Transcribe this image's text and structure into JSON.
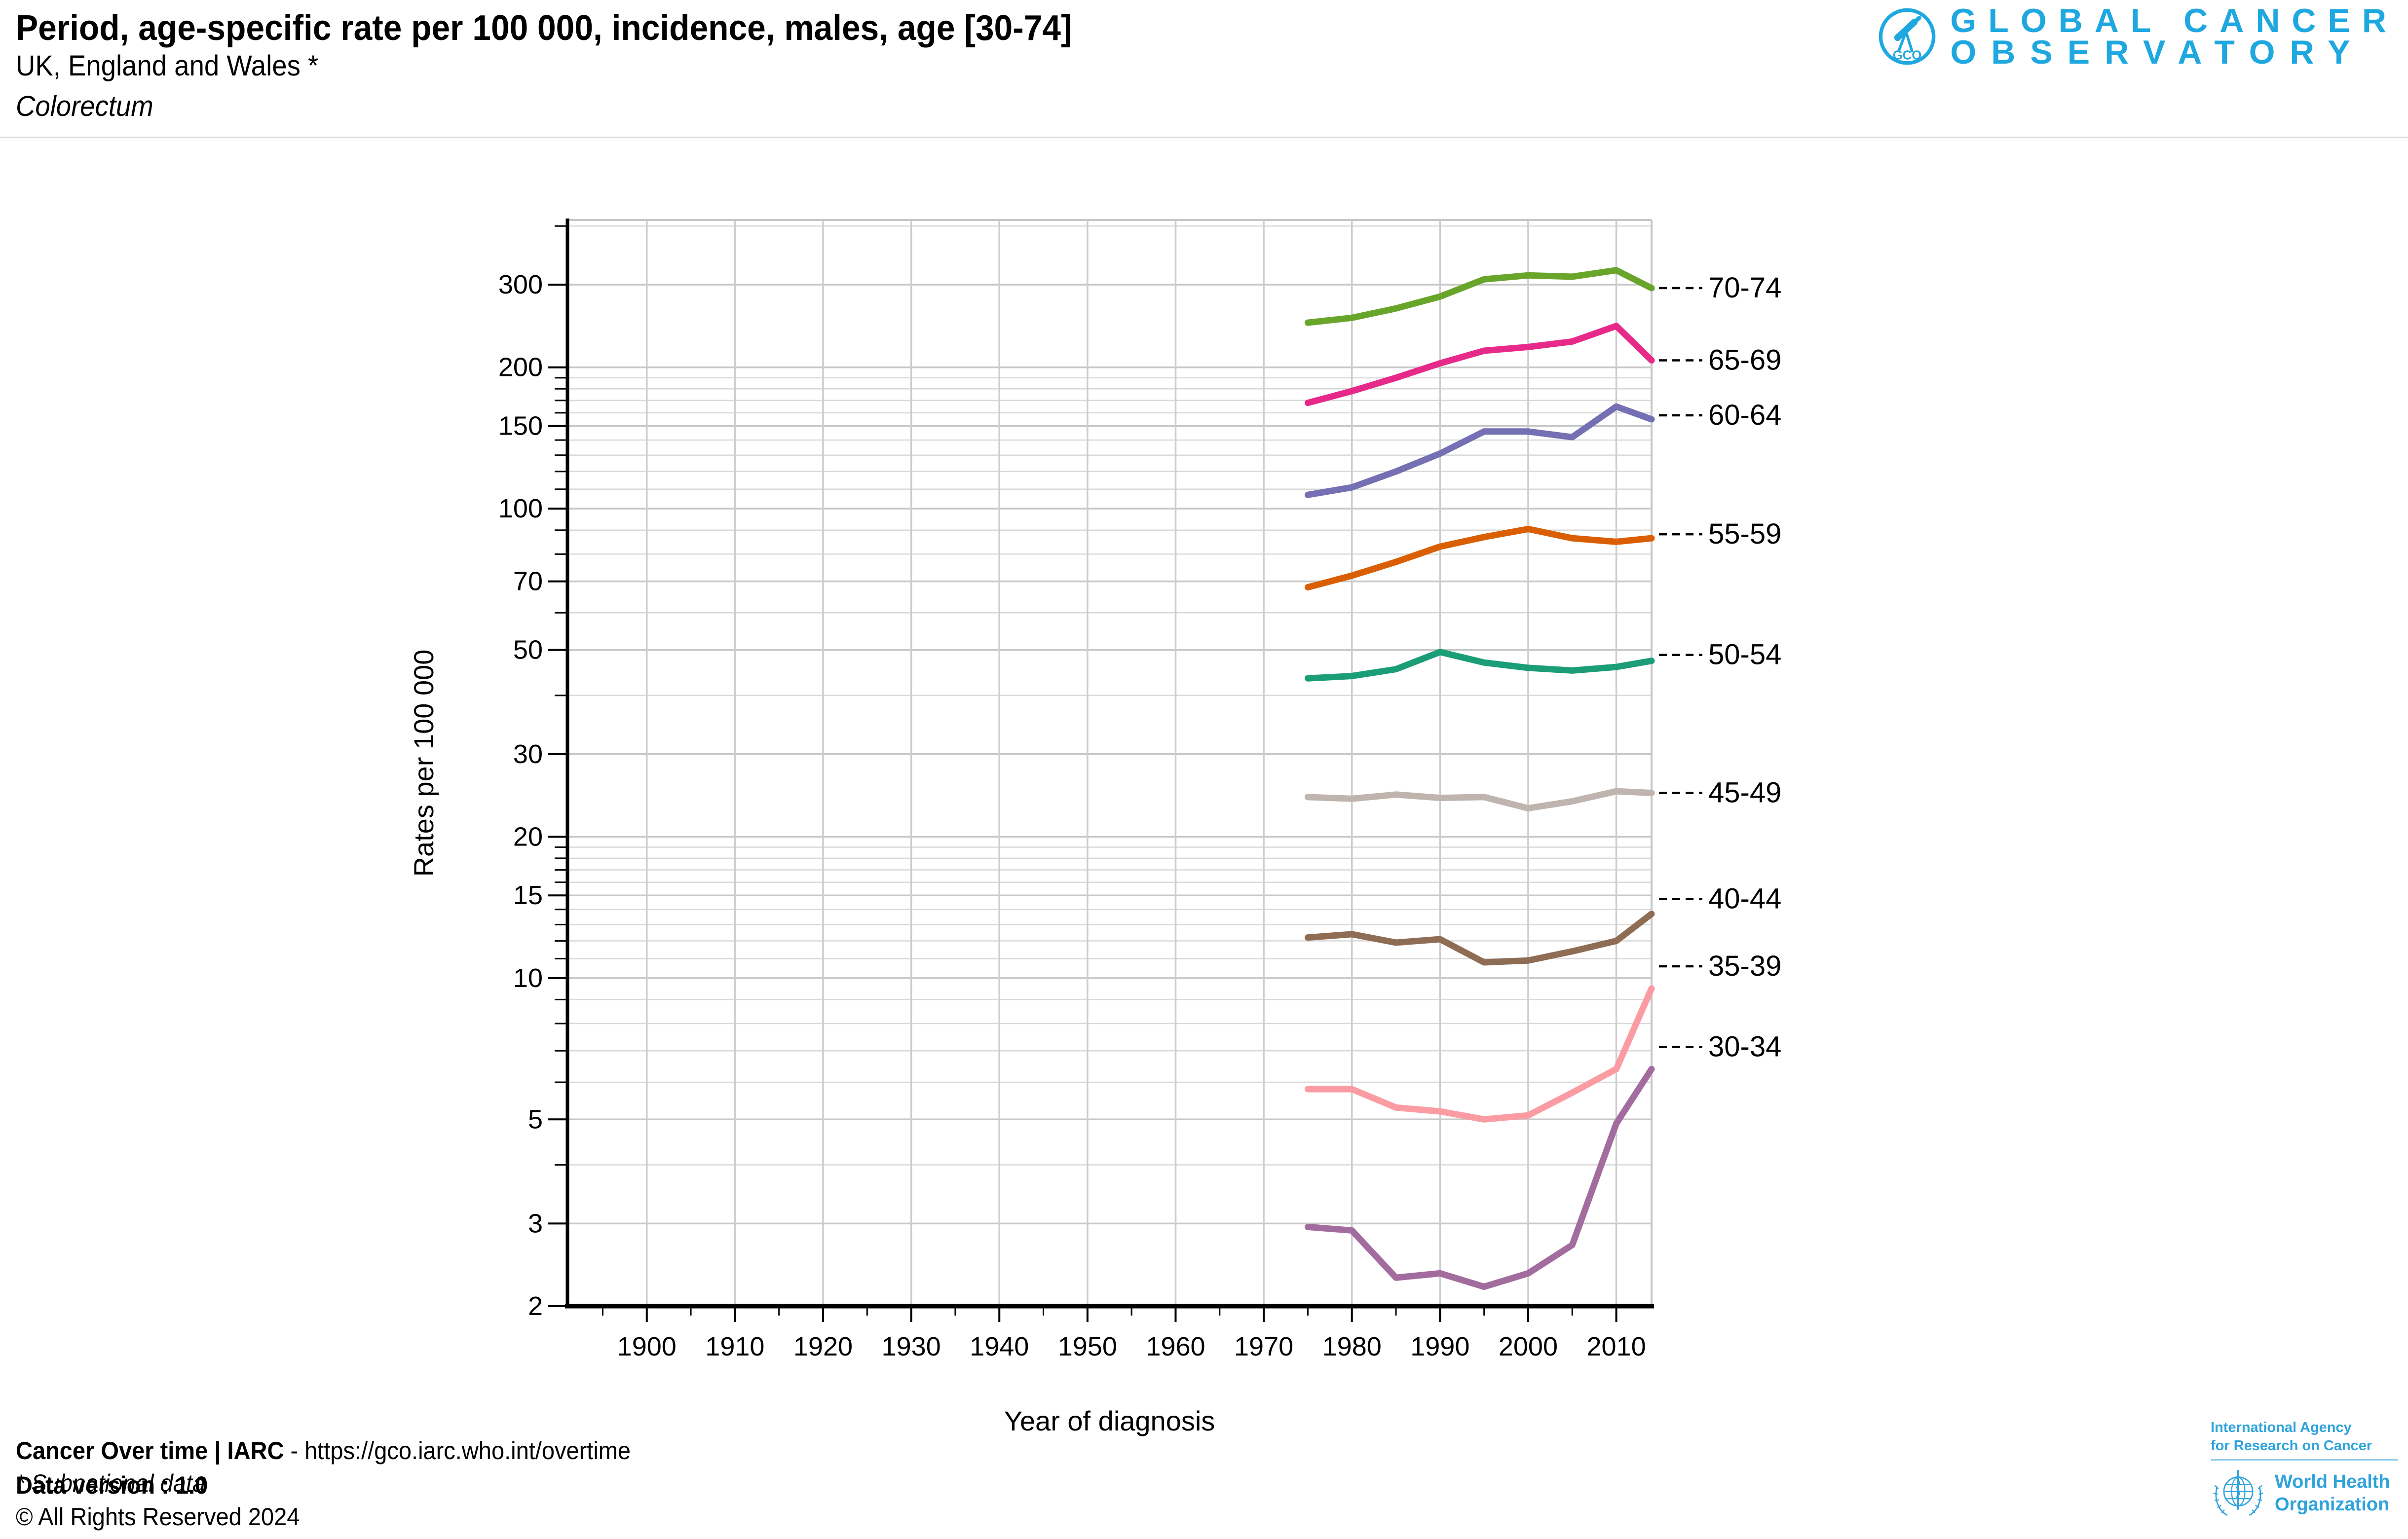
{
  "header": {
    "title": "Period, age-specific rate per 100 000, incidence, males, age [30-74]",
    "subtitle": "UK, England and Wales *",
    "cancer_site": "Colorectum",
    "logo": {
      "acronym": "GCO",
      "line1": "GLOBAL CANCER",
      "line2": "OBSERVATORY",
      "color": "#1FA8E0"
    }
  },
  "chart_data": {
    "type": "line",
    "title": "Period, age-specific rate per 100 000, incidence, males, age [30-74]",
    "xlabel": "Year of diagnosis",
    "ylabel": "Rates per 100 000",
    "y_scale": "log",
    "x_range": [
      1891,
      2014
    ],
    "y_range": [
      2,
      412
    ],
    "x_tick_labels": [
      1900,
      1910,
      1920,
      1930,
      1940,
      1950,
      1960,
      1970,
      1980,
      1990,
      2000,
      2010
    ],
    "y_tick_labels": [
      2,
      3,
      5,
      10,
      15,
      20,
      30,
      50,
      70,
      100,
      150,
      200,
      300
    ],
    "grid": true,
    "x": [
      1975,
      1980,
      1985,
      1990,
      1995,
      2000,
      2005,
      2010,
      2014
    ],
    "series": [
      {
        "label": "70-74",
        "color": "#69A52B",
        "values": [
          249,
          255,
          267,
          283,
          308,
          314,
          312,
          322,
          295
        ]
      },
      {
        "label": "65-69",
        "color": "#E7298A",
        "values": [
          168,
          178,
          190,
          204,
          217,
          221,
          227,
          245,
          207
        ]
      },
      {
        "label": "60-64",
        "color": "#7570B3",
        "values": [
          107,
          111,
          120,
          131,
          146,
          146,
          142,
          165,
          155
        ]
      },
      {
        "label": "55-59",
        "color": "#D95F02",
        "values": [
          68,
          72,
          77,
          83,
          87,
          90.5,
          86.5,
          85,
          86.5
        ]
      },
      {
        "label": "50-54",
        "color": "#1B9E77",
        "values": [
          43.5,
          44,
          45.5,
          49.5,
          47,
          45.8,
          45.2,
          46,
          47.4
        ]
      },
      {
        "label": "45-49",
        "color": "#BFB5AE",
        "values": [
          24.3,
          24.1,
          24.6,
          24.2,
          24.3,
          23,
          23.8,
          25,
          24.8
        ]
      },
      {
        "label": "40-44",
        "color": "#8F6D55",
        "values": [
          12.2,
          12.4,
          11.9,
          12.1,
          10.8,
          10.9,
          11.4,
          12,
          13.7
        ]
      },
      {
        "label": "35-39",
        "color": "#FB9CA3",
        "values": [
          5.8,
          5.8,
          5.3,
          5.2,
          5,
          5.1,
          5.7,
          6.4,
          9.5
        ]
      },
      {
        "label": "30-34",
        "color": "#A26C9F",
        "values": [
          2.95,
          2.9,
          2.3,
          2.35,
          2.2,
          2.35,
          2.7,
          4.9,
          6.4
        ]
      }
    ]
  },
  "footer": {
    "left": {
      "source_bold": "Cancer Over time | IARC",
      "source_rest": " - https://gco.iarc.who.int/overtime",
      "subnational_note": "* Subnational data",
      "data_version": "Data version : 1.0",
      "copyright": "© All Rights Reserved 2024"
    },
    "right": {
      "iarc_line1": "International Agency",
      "iarc_line2": "for Research on Cancer",
      "who_line1": "World Health",
      "who_line2": "Organization",
      "color": "#2FA3DC"
    }
  }
}
